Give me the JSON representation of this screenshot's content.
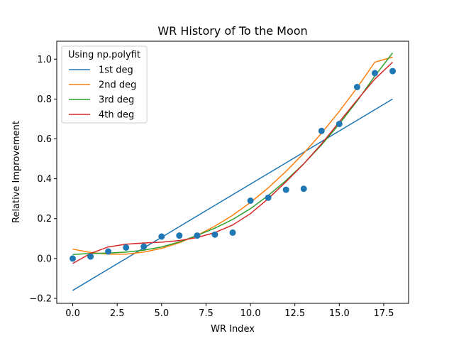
{
  "chart_data": {
    "type": "scatter",
    "title": "WR History of To the Moon",
    "xlabel": "WR Index",
    "ylabel": "Relative Improvement",
    "xlim": [
      -0.9,
      18.9
    ],
    "ylim": [
      -0.225,
      1.09
    ],
    "x_ticks": [
      0,
      2.5,
      5,
      7.5,
      10,
      12.5,
      15,
      17.5
    ],
    "x_tick_labels": [
      "0.0",
      "2.5",
      "5.0",
      "7.5",
      "10.0",
      "12.5",
      "15.0",
      "17.5"
    ],
    "y_ticks": [
      -0.2,
      0.0,
      0.2,
      0.4,
      0.6,
      0.8,
      1.0
    ],
    "y_tick_labels": [
      "−0.2",
      "0.0",
      "0.2",
      "0.4",
      "0.6",
      "0.8",
      "1.0"
    ],
    "grid": false,
    "legend": {
      "title": "Using np.polyfit",
      "position": "top-left",
      "entries": [
        "1st deg",
        "2nd deg",
        "3rd deg",
        "4th deg"
      ]
    },
    "points": {
      "color": "#1f77b4",
      "x": [
        0,
        1,
        2,
        3,
        4,
        5,
        6,
        7,
        8,
        9,
        10,
        11,
        12,
        13,
        14,
        15,
        16,
        17,
        18
      ],
      "y": [
        0.0,
        0.01,
        0.035,
        0.055,
        0.06,
        0.11,
        0.115,
        0.115,
        0.12,
        0.13,
        0.29,
        0.305,
        0.345,
        0.35,
        0.64,
        0.675,
        0.86,
        0.93,
        0.94
      ]
    },
    "series": [
      {
        "name": "1st deg",
        "color": "#1f77b4",
        "x": [
          0,
          18
        ],
        "y": [
          -0.16,
          0.8
        ]
      },
      {
        "name": "2nd deg",
        "color": "#ff7f0e",
        "x": [
          0,
          1,
          2,
          3,
          4,
          5,
          6,
          7,
          8,
          9,
          10,
          11,
          12,
          13,
          14,
          15,
          16,
          17,
          18
        ],
        "y": [
          0.047,
          0.03,
          0.022,
          0.022,
          0.032,
          0.051,
          0.079,
          0.116,
          0.162,
          0.217,
          0.281,
          0.354,
          0.437,
          0.528,
          0.629,
          0.738,
          0.857,
          0.985,
          1.01
        ]
      },
      {
        "name": "3rd deg",
        "color": "#2ca02c",
        "x": [
          0,
          1,
          2,
          3,
          4,
          5,
          6,
          7,
          8,
          9,
          10,
          11,
          12,
          13,
          14,
          15,
          16,
          17,
          18
        ],
        "y": [
          0.02,
          0.025,
          0.027,
          0.032,
          0.042,
          0.058,
          0.083,
          0.116,
          0.152,
          0.196,
          0.25,
          0.316,
          0.391,
          0.475,
          0.57,
          0.675,
          0.79,
          0.915,
          1.032
        ]
      },
      {
        "name": "4th deg",
        "color": "#d62728",
        "x": [
          0,
          1,
          2,
          3,
          4,
          5,
          6,
          7,
          8,
          9,
          10,
          11,
          12,
          13,
          14,
          15,
          16,
          17,
          18
        ],
        "y": [
          -0.025,
          0.025,
          0.058,
          0.072,
          0.078,
          0.082,
          0.09,
          0.105,
          0.13,
          0.168,
          0.225,
          0.3,
          0.385,
          0.475,
          0.575,
          0.685,
          0.795,
          0.9,
          0.985
        ]
      }
    ]
  }
}
